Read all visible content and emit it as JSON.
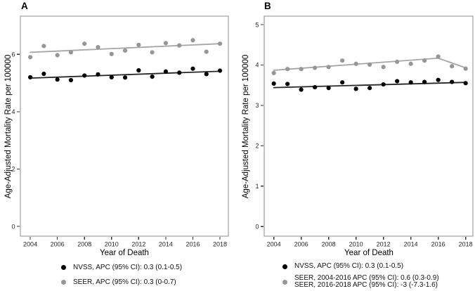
{
  "figure_colors": {
    "background": "#ffffff",
    "frame": "#8c8c8c",
    "tick": "#333333",
    "tick_label": "#262626",
    "nvss_point": "#000000",
    "nvss_line": "#262626",
    "seer_point": "#969696",
    "seer_line": "#a6a6a6"
  },
  "chart_data": [
    {
      "type": "scatter",
      "title": "A",
      "xlabel": "Year of Death",
      "ylabel": "Age-Adjusted Mortality Rate per 100000",
      "x": [
        2004,
        2005,
        2006,
        2007,
        2008,
        2009,
        2010,
        2011,
        2012,
        2013,
        2014,
        2015,
        2016,
        2017,
        2018
      ],
      "x_ticks": [
        2004,
        2006,
        2008,
        2010,
        2012,
        2014,
        2016,
        2018
      ],
      "y_ticks": [
        0,
        2,
        4,
        6
      ],
      "xlim": [
        2003.27,
        2018.62
      ],
      "ylim": [
        -0.34,
        7.33
      ],
      "grid": false,
      "legend_position": "bottom",
      "frame_color": "#8c8c8c",
      "series": [
        {
          "name": "NVSS",
          "point_color": "#000000",
          "line_color": "#262626",
          "values": [
            5.2,
            5.32,
            5.12,
            5.1,
            5.26,
            5.3,
            5.2,
            5.19,
            5.44,
            5.22,
            5.4,
            5.36,
            5.5,
            5.31,
            5.43
          ],
          "trend": [
            [
              2004,
              5.17
            ],
            [
              2018,
              5.41
            ]
          ]
        },
        {
          "name": "SEER",
          "point_color": "#969696",
          "line_color": "#a6a6a6",
          "values": [
            5.9,
            6.29,
            5.97,
            6.07,
            6.37,
            6.25,
            6.01,
            6.13,
            6.33,
            6.07,
            6.39,
            6.31,
            6.49,
            6.09,
            6.37
          ],
          "trend": [
            [
              2004,
              6.07
            ],
            [
              2018,
              6.37
            ]
          ]
        }
      ],
      "legend": [
        {
          "marker_color": "#000000",
          "lines": [
            "NVSS, APC (95% CI): 0.3 (0.1-0.5)"
          ]
        },
        {
          "marker_color": "#969696",
          "lines": [
            "SEER, APC (95% CI): 0.3 (0-0.7)"
          ]
        }
      ]
    },
    {
      "type": "scatter",
      "title": "B",
      "xlabel": "Year of Death",
      "ylabel": "Age-Adjusted Mortality Rate per 100000",
      "x": [
        2004,
        2005,
        2006,
        2007,
        2008,
        2009,
        2010,
        2011,
        2012,
        2013,
        2014,
        2015,
        2016,
        2017,
        2018
      ],
      "x_ticks": [
        2004,
        2006,
        2008,
        2010,
        2012,
        2014,
        2016,
        2018
      ],
      "y_ticks": [
        0,
        1,
        2,
        3,
        4,
        5
      ],
      "xlim": [
        2003.3,
        2018.53
      ],
      "ylim": [
        -0.24,
        5.21
      ],
      "grid": false,
      "legend_position": "bottom",
      "frame_color": "#8c8c8c",
      "series": [
        {
          "name": "NVSS",
          "point_color": "#000000",
          "line_color": "#262626",
          "values": [
            3.54,
            3.53,
            3.39,
            3.45,
            3.43,
            3.57,
            3.41,
            3.43,
            3.52,
            3.6,
            3.57,
            3.58,
            3.63,
            3.58,
            3.55
          ],
          "trend": [
            [
              2004,
              3.44
            ],
            [
              2018,
              3.57
            ]
          ]
        },
        {
          "name": "SEER",
          "point_color": "#969696",
          "line_color": "#a6a6a6",
          "values": [
            3.8,
            3.9,
            3.9,
            3.93,
            3.95,
            4.11,
            4.03,
            4.01,
            3.95,
            4.08,
            4.03,
            4.11,
            4.21,
            3.97,
            3.91
          ],
          "trend": [
            [
              2004,
              3.87
            ],
            [
              2016,
              4.17
            ],
            [
              2018,
              3.93
            ]
          ]
        }
      ],
      "legend": [
        {
          "marker_color": "#000000",
          "lines": [
            "NVSS, APC (95% CI): 0.3 (0.1-0.5)"
          ]
        },
        {
          "marker_color": "#969696",
          "lines": [
            "SEER, 2004-2016 APC (95% CI): 0.6 (0.3-0.9)",
            "SEER, 2016-2018 APC (95% CI): -3 (-7.3-1.6)"
          ]
        }
      ]
    }
  ]
}
